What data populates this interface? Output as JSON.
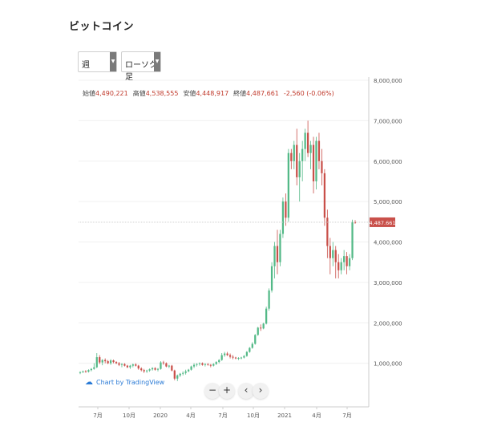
{
  "title": "ビットコイン",
  "controls": {
    "period": "週",
    "chart_type": "ローソク足",
    "zoom_out": "−",
    "zoom_in": "+",
    "prev": "‹",
    "next": "›"
  },
  "ohlc": {
    "open_label": "始値",
    "open": "4,490,221",
    "high_label": "高値",
    "high": "4,538,555",
    "low_label": "安値",
    "low": "4,448,917",
    "close_label": "終値",
    "close": "4,487,661",
    "change": "-2,560 (-0.06%)"
  },
  "branding": "Chart by TradingView",
  "colors": {
    "up": "#53b987",
    "down": "#c9504a",
    "price_tag": "#c9504a"
  },
  "chart_data": {
    "type": "candlestick",
    "title": "",
    "ylim": [
      0,
      8000000
    ],
    "y_ticks": [
      "1,000,000",
      "2,000,000",
      "3,000,000",
      "4,000,000",
      "5,000,000",
      "6,000,000",
      "7,000,000",
      "8,000,000"
    ],
    "x_ticks": [
      "7月",
      "10月",
      "2020",
      "4月",
      "7月",
      "10月",
      "2021",
      "4月",
      "7月"
    ],
    "last_price": "4,487.661",
    "candles": [
      [
        760000,
        800000,
        730000,
        780000
      ],
      [
        780000,
        820000,
        760000,
        800000
      ],
      [
        800000,
        830000,
        770000,
        790000
      ],
      [
        790000,
        850000,
        770000,
        830000
      ],
      [
        830000,
        880000,
        800000,
        860000
      ],
      [
        860000,
        1000000,
        840000,
        900000
      ],
      [
        900000,
        1250000,
        880000,
        1150000
      ],
      [
        1150000,
        1200000,
        980000,
        1020000
      ],
      [
        1020000,
        1100000,
        950000,
        1080000
      ],
      [
        1080000,
        1120000,
        1000000,
        1050000
      ],
      [
        1050000,
        1080000,
        980000,
        1000000
      ],
      [
        1000000,
        1100000,
        960000,
        1070000
      ],
      [
        1070000,
        1090000,
        1000000,
        1030000
      ],
      [
        1030000,
        1050000,
        980000,
        1000000
      ],
      [
        1000000,
        1030000,
        930000,
        960000
      ],
      [
        960000,
        1000000,
        900000,
        980000
      ],
      [
        980000,
        1000000,
        920000,
        940000
      ],
      [
        940000,
        960000,
        880000,
        900000
      ],
      [
        900000,
        960000,
        860000,
        940000
      ],
      [
        940000,
        990000,
        900000,
        970000
      ],
      [
        970000,
        1000000,
        920000,
        940000
      ],
      [
        940000,
        960000,
        840000,
        870000
      ],
      [
        870000,
        900000,
        800000,
        830000
      ],
      [
        830000,
        860000,
        760000,
        800000
      ],
      [
        800000,
        840000,
        760000,
        820000
      ],
      [
        820000,
        870000,
        790000,
        850000
      ],
      [
        850000,
        900000,
        820000,
        880000
      ],
      [
        880000,
        900000,
        820000,
        840000
      ],
      [
        840000,
        880000,
        800000,
        860000
      ],
      [
        860000,
        1050000,
        840000,
        1020000
      ],
      [
        1020000,
        1060000,
        960000,
        1000000
      ],
      [
        1000000,
        1020000,
        900000,
        920000
      ],
      [
        920000,
        960000,
        880000,
        940000
      ],
      [
        940000,
        960000,
        800000,
        820000
      ],
      [
        820000,
        840000,
        580000,
        620000
      ],
      [
        620000,
        720000,
        560000,
        700000
      ],
      [
        700000,
        760000,
        660000,
        740000
      ],
      [
        740000,
        800000,
        700000,
        760000
      ],
      [
        760000,
        840000,
        720000,
        800000
      ],
      [
        800000,
        860000,
        780000,
        840000
      ],
      [
        840000,
        940000,
        820000,
        920000
      ],
      [
        920000,
        1000000,
        880000,
        960000
      ],
      [
        960000,
        1000000,
        920000,
        980000
      ],
      [
        980000,
        1020000,
        940000,
        1000000
      ],
      [
        1000000,
        1020000,
        940000,
        960000
      ],
      [
        960000,
        1000000,
        920000,
        980000
      ],
      [
        980000,
        1000000,
        940000,
        960000
      ],
      [
        960000,
        980000,
        900000,
        940000
      ],
      [
        940000,
        1000000,
        920000,
        980000
      ],
      [
        980000,
        1050000,
        960000,
        1030000
      ],
      [
        1030000,
        1100000,
        1000000,
        1080000
      ],
      [
        1080000,
        1250000,
        1060000,
        1200000
      ],
      [
        1200000,
        1280000,
        1160000,
        1240000
      ],
      [
        1240000,
        1280000,
        1180000,
        1200000
      ],
      [
        1200000,
        1240000,
        1120000,
        1160000
      ],
      [
        1160000,
        1200000,
        1100000,
        1140000
      ],
      [
        1140000,
        1160000,
        1100000,
        1120000
      ],
      [
        1120000,
        1150000,
        1080000,
        1130000
      ],
      [
        1130000,
        1160000,
        1100000,
        1140000
      ],
      [
        1140000,
        1200000,
        1120000,
        1180000
      ],
      [
        1180000,
        1300000,
        1160000,
        1280000
      ],
      [
        1280000,
        1400000,
        1260000,
        1380000
      ],
      [
        1380000,
        1520000,
        1360000,
        1480000
      ],
      [
        1480000,
        1720000,
        1460000,
        1700000
      ],
      [
        1700000,
        1900000,
        1680000,
        1880000
      ],
      [
        1880000,
        1960000,
        1800000,
        1860000
      ],
      [
        1860000,
        2000000,
        1840000,
        1980000
      ],
      [
        1980000,
        2400000,
        1960000,
        2350000
      ],
      [
        2350000,
        2850000,
        2300000,
        2800000
      ],
      [
        2800000,
        3500000,
        2750000,
        3400000
      ],
      [
        3400000,
        4000000,
        3100000,
        3900000
      ],
      [
        3900000,
        4300000,
        3200000,
        3500000
      ],
      [
        3500000,
        4300000,
        3400000,
        4200000
      ],
      [
        4200000,
        5100000,
        4100000,
        5000000
      ],
      [
        5000000,
        5200000,
        4400000,
        4600000
      ],
      [
        4600000,
        6300000,
        4500000,
        6200000
      ],
      [
        6200000,
        6300000,
        5800000,
        6000000
      ],
      [
        6000000,
        6500000,
        5800000,
        6400000
      ],
      [
        6400000,
        6800000,
        5400000,
        5600000
      ],
      [
        5600000,
        6200000,
        5000000,
        6000000
      ],
      [
        6000000,
        6500000,
        5500000,
        6300000
      ],
      [
        6300000,
        6800000,
        6000000,
        6700000
      ],
      [
        6700000,
        7000000,
        6100000,
        6200000
      ],
      [
        6200000,
        6500000,
        5800000,
        6400000
      ],
      [
        6400000,
        6600000,
        5200000,
        5500000
      ],
      [
        5500000,
        6600000,
        5300000,
        6500000
      ],
      [
        6500000,
        6700000,
        5800000,
        6000000
      ],
      [
        6000000,
        6300000,
        5400000,
        5700000
      ],
      [
        5700000,
        5800000,
        4400000,
        4600000
      ],
      [
        4600000,
        4800000,
        3600000,
        3900000
      ],
      [
        3900000,
        4100000,
        3200000,
        3600000
      ],
      [
        3600000,
        4000000,
        3400000,
        3800000
      ],
      [
        3800000,
        3900000,
        3100000,
        3500000
      ],
      [
        3500000,
        3700000,
        3100000,
        3300000
      ],
      [
        3300000,
        3600000,
        3200000,
        3500000
      ],
      [
        3500000,
        3800000,
        3300000,
        3650000
      ],
      [
        3650000,
        3750000,
        3200000,
        3400000
      ],
      [
        3400000,
        3700000,
        3300000,
        3600000
      ],
      [
        3600000,
        4550000,
        3550000,
        4490221
      ],
      [
        4490221,
        4538555,
        4448917,
        4487661
      ]
    ]
  }
}
